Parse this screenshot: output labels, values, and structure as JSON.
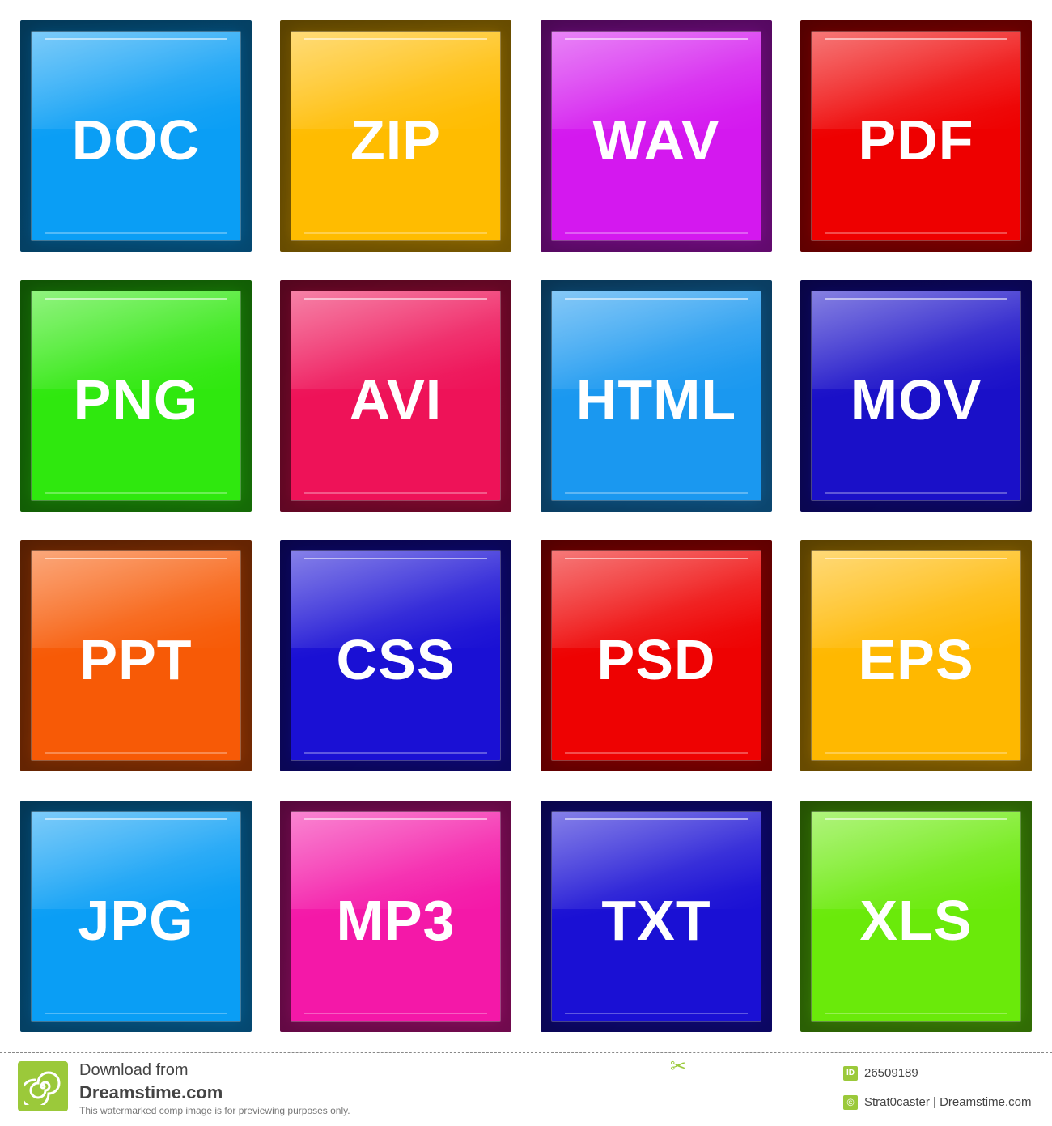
{
  "tiles": [
    {
      "label": "DOC",
      "color": "#0a9ef5"
    },
    {
      "label": "ZIP",
      "color": "#ffbc00"
    },
    {
      "label": "WAV",
      "color": "#d418ef"
    },
    {
      "label": "PDF",
      "color": "#ee0000"
    },
    {
      "label": "PNG",
      "color": "#2fe80e"
    },
    {
      "label": "AVI",
      "color": "#ee1258"
    },
    {
      "label": "HTML",
      "color": "#1a98f0"
    },
    {
      "label": "MOV",
      "color": "#1a10c8"
    },
    {
      "label": "PPT",
      "color": "#f75a06"
    },
    {
      "label": "CSS",
      "color": "#1a10d4"
    },
    {
      "label": "PSD",
      "color": "#ee0202"
    },
    {
      "label": "EPS",
      "color": "#ffb800"
    },
    {
      "label": "JPG",
      "color": "#0a9ef5"
    },
    {
      "label": "MP3",
      "color": "#f418a8"
    },
    {
      "label": "TXT",
      "color": "#1a10d4"
    },
    {
      "label": "XLS",
      "color": "#6aea0a"
    }
  ],
  "footer": {
    "line1": "Download from",
    "line2": "Dreamstime.com",
    "note": "This watermarked comp image is for previewing purposes only.",
    "id_badge": "ID",
    "id_value": "26509189",
    "copyright_symbol": "©",
    "credit": "Strat0caster | Dreamstime.com",
    "accent": "#9bc93a"
  }
}
